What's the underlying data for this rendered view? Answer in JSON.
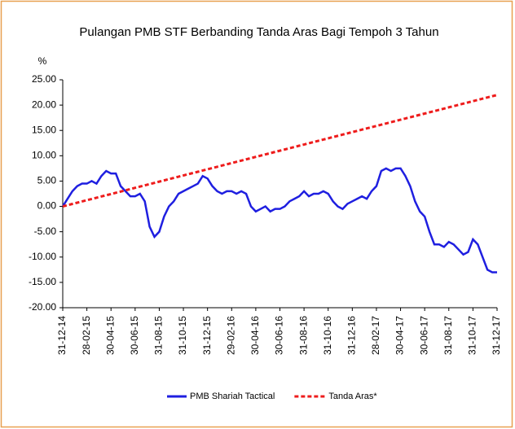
{
  "chart_data": {
    "type": "line",
    "title": "Pulangan PMB STF Berbanding Tanda Aras Bagi Tempoh  3 Tahun",
    "ylabel": "%",
    "categories": [
      "31-12-14",
      null,
      null,
      null,
      null,
      "28-02-15",
      null,
      null,
      null,
      null,
      "30-04-15",
      null,
      null,
      null,
      null,
      "30-06-15",
      null,
      null,
      null,
      null,
      "31-08-15",
      null,
      null,
      null,
      null,
      "31-10-15",
      null,
      null,
      null,
      null,
      "31-12-15",
      null,
      null,
      null,
      null,
      "29-02-16",
      null,
      null,
      null,
      null,
      "30-04-16",
      null,
      null,
      null,
      null,
      "30-06-16",
      null,
      null,
      null,
      null,
      "31-08-16",
      null,
      null,
      null,
      null,
      "31-10-16",
      null,
      null,
      null,
      null,
      "31-12-16",
      null,
      null,
      null,
      null,
      "28-02-17",
      null,
      null,
      null,
      null,
      "30-04-17",
      null,
      null,
      null,
      null,
      "30-06-17",
      null,
      null,
      null,
      null,
      "31-08-17",
      null,
      null,
      null,
      null,
      "31-10-17",
      null,
      null,
      null,
      null,
      "31-12-17"
    ],
    "series": [
      {
        "name": "PMB Shariah Tactical",
        "color": "#1f1fe0",
        "dash": false,
        "values": [
          0,
          1.5,
          3,
          4,
          4.5,
          4.5,
          5,
          4.5,
          6,
          7,
          6.5,
          6.5,
          4,
          3,
          2,
          2,
          2.5,
          1,
          -4,
          -6,
          -5,
          -2,
          0,
          1,
          2.5,
          3,
          3.5,
          4,
          4.5,
          6,
          5.5,
          4,
          3,
          2.5,
          3,
          3,
          2.5,
          3,
          2.5,
          0,
          -1,
          -0.5,
          0,
          -1,
          -0.5,
          -0.5,
          0,
          1,
          1.5,
          2,
          3,
          2,
          2.5,
          2.5,
          3,
          2.5,
          1,
          0,
          -0.5,
          0.5,
          1,
          1.5,
          2,
          1.5,
          3,
          4,
          7,
          7.5,
          7,
          7.5,
          7.5,
          6,
          4,
          1,
          -1,
          -2,
          -5,
          -7.5,
          -7.5,
          -8,
          -7,
          -7.5,
          -8.5,
          -9.5,
          -9,
          -6.5,
          -7.5,
          -10,
          -12.5,
          -13,
          -13
        ]
      },
      {
        "name": "Tanda Aras*",
        "color": "#ee1c1c",
        "dash": true,
        "values": [
          0,
          0.24,
          0.49,
          0.73,
          0.98,
          1.22,
          1.47,
          1.71,
          1.96,
          2.2,
          2.44,
          2.69,
          2.93,
          3.18,
          3.42,
          3.67,
          3.91,
          4.16,
          4.4,
          4.64,
          4.89,
          5.13,
          5.38,
          5.62,
          5.87,
          6.11,
          6.36,
          6.6,
          6.84,
          7.09,
          7.33,
          7.58,
          7.82,
          8.07,
          8.31,
          8.56,
          8.8,
          9.04,
          9.29,
          9.53,
          9.78,
          10.02,
          10.27,
          10.51,
          10.76,
          11,
          11.24,
          11.49,
          11.73,
          11.98,
          12.22,
          12.47,
          12.71,
          12.96,
          13.2,
          13.44,
          13.69,
          13.93,
          14.18,
          14.42,
          14.67,
          14.91,
          15.16,
          15.4,
          15.64,
          15.89,
          16.13,
          16.38,
          16.62,
          16.87,
          17.11,
          17.36,
          17.6,
          17.84,
          18.09,
          18.33,
          18.58,
          18.82,
          19.07,
          19.31,
          19.56,
          19.8,
          20.04,
          20.29,
          20.53,
          20.78,
          21.02,
          21.27,
          21.51,
          21.76,
          22
        ]
      }
    ],
    "ylim": [
      -20,
      25
    ],
    "yticks": [
      {
        "value": -20,
        "label": "-20.00"
      },
      {
        "value": -15,
        "label": "-15.00"
      },
      {
        "value": -10,
        "label": "-10.00"
      },
      {
        "value": -5,
        "label": "-5.00"
      },
      {
        "value": 0,
        "label": "0.00"
      },
      {
        "value": 5,
        "label": "5.00"
      },
      {
        "value": 10,
        "label": "10.00"
      },
      {
        "value": 15,
        "label": "15.00"
      },
      {
        "value": 20,
        "label": "20.00"
      },
      {
        "value": 25,
        "label": "25.00"
      }
    ],
    "legend": "bottom"
  }
}
